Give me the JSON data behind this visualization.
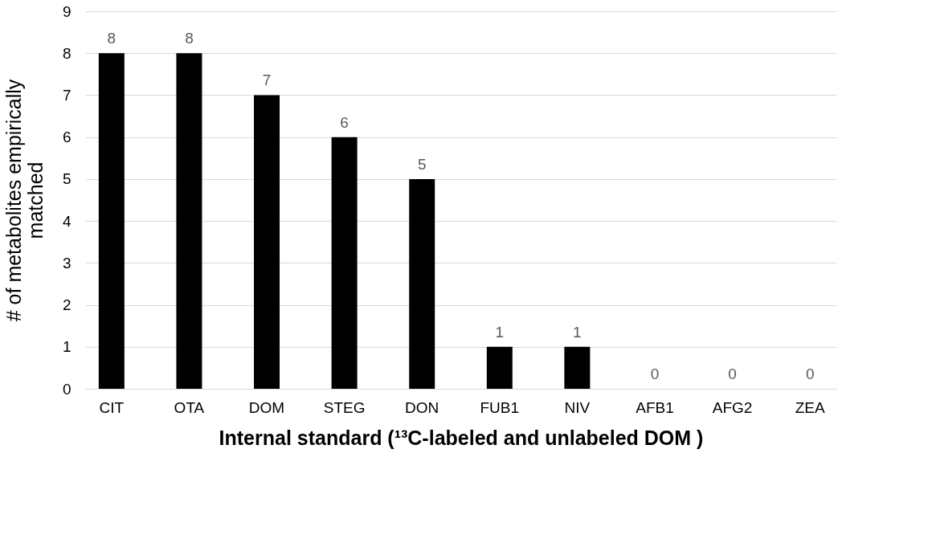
{
  "chart_data": {
    "type": "bar",
    "categories": [
      "CIT",
      "OTA",
      "DOM",
      "STEG",
      "DON",
      "FUB1",
      "NIV",
      "AFB1",
      "AFG2",
      "ZEA"
    ],
    "values": [
      8,
      8,
      7,
      6,
      5,
      1,
      1,
      0,
      0,
      0
    ],
    "color": "#000000",
    "xlabel": "Internal standard (¹³C-labeled and unlabeled DOM )",
    "ylabel": "# of metabolites empirically\nmatched",
    "ylim": [
      0,
      9
    ],
    "yticks": [
      0,
      1,
      2,
      3,
      4,
      5,
      6,
      7,
      8,
      9
    ],
    "grid": "y",
    "data_labels": true
  }
}
